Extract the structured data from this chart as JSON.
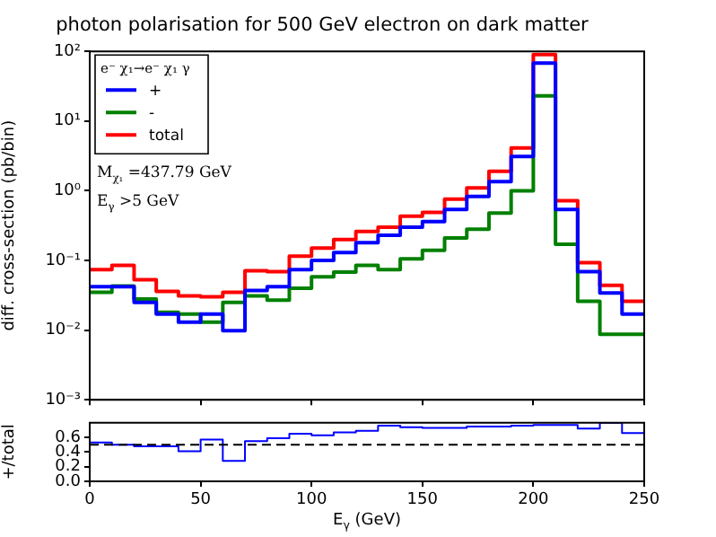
{
  "chart_data": [
    {
      "type": "histogram",
      "title": "photon polarisation for 500 GeV electron on dark matter",
      "ylabel": "diff. cross-section (pb/bin)",
      "legend_title": "e⁻ χ₁→e⁻ χ₁ γ",
      "legend": "top left",
      "annotations": [
        "M$_{χ₁}$ =437.79 GeV",
        "E$_{γ}$ >5 GeV"
      ],
      "bins": [
        0,
        10,
        20,
        30,
        40,
        50,
        60,
        70,
        80,
        90,
        100,
        110,
        120,
        130,
        140,
        150,
        160,
        170,
        180,
        190,
        200,
        210,
        220,
        230,
        240,
        250
      ],
      "series": [
        {
          "name": "+",
          "color": "#0000ff",
          "values": [
            0.042,
            0.042,
            0.025,
            0.017,
            0.013,
            0.017,
            0.0098,
            0.037,
            0.042,
            0.074,
            0.1,
            0.13,
            0.18,
            0.23,
            0.3,
            0.36,
            0.54,
            0.83,
            1.35,
            3.1,
            68,
            0.54,
            0.069,
            0.034,
            0.017
          ]
        },
        {
          "name": "-",
          "color": "#008000",
          "values": [
            0.035,
            0.043,
            0.028,
            0.018,
            0.017,
            0.013,
            0.025,
            0.031,
            0.027,
            0.04,
            0.058,
            0.068,
            0.085,
            0.074,
            0.105,
            0.14,
            0.21,
            0.28,
            0.48,
            1.0,
            23,
            0.17,
            0.026,
            0.0087,
            0.0087
          ]
        },
        {
          "name": "total",
          "color": "#ff0000",
          "values": [
            0.074,
            0.085,
            0.053,
            0.036,
            0.031,
            0.03,
            0.035,
            0.071,
            0.069,
            0.115,
            0.15,
            0.2,
            0.26,
            0.3,
            0.43,
            0.49,
            0.76,
            1.1,
            1.9,
            4.1,
            90,
            0.72,
            0.093,
            0.044,
            0.026
          ]
        }
      ],
      "xlim": [
        0,
        250
      ],
      "xticks": [
        0,
        50,
        100,
        150,
        200,
        250
      ],
      "tick_labels": "y",
      "log": "y",
      "ylim": [
        0.001,
        100
      ],
      "yticks": [
        {
          "value": 0.001,
          "label": "10⁻³"
        },
        {
          "value": 0.01,
          "label": "10⁻²"
        },
        {
          "value": 0.1,
          "label": "10⁻¹"
        },
        {
          "value": 1,
          "label": "10⁰"
        },
        {
          "value": 10,
          "label": "10¹"
        },
        {
          "value": 100,
          "label": "10²"
        }
      ]
    },
    {
      "type": "histogram",
      "xlabel": "E$_{γ}$ (GeV)",
      "ylabel": "+/total",
      "bins": [
        0,
        10,
        20,
        30,
        40,
        50,
        60,
        70,
        80,
        90,
        100,
        110,
        120,
        130,
        140,
        150,
        160,
        170,
        180,
        190,
        200,
        210,
        220,
        230,
        240,
        250
      ],
      "series": [
        {
          "color": "#0000ff",
          "values": [
            0.53,
            0.5,
            0.48,
            0.48,
            0.41,
            0.57,
            0.28,
            0.55,
            0.59,
            0.65,
            0.63,
            0.67,
            0.69,
            0.76,
            0.74,
            0.73,
            0.73,
            0.75,
            0.75,
            0.76,
            0.77,
            0.77,
            0.72,
            0.8,
            0.66
          ]
        }
      ],
      "ref_lines": [
        {
          "axis": "y",
          "value": 0.5,
          "color": "#000000",
          "line_style": "dashed"
        }
      ],
      "xlim": [
        0,
        250
      ],
      "xticks": [
        0,
        50,
        100,
        150,
        200,
        250
      ],
      "ylim": [
        0,
        0.8
      ],
      "yticks": [
        {
          "value": 0,
          "label": "0.0"
        },
        0.2,
        0.4,
        0.6
      ]
    }
  ]
}
